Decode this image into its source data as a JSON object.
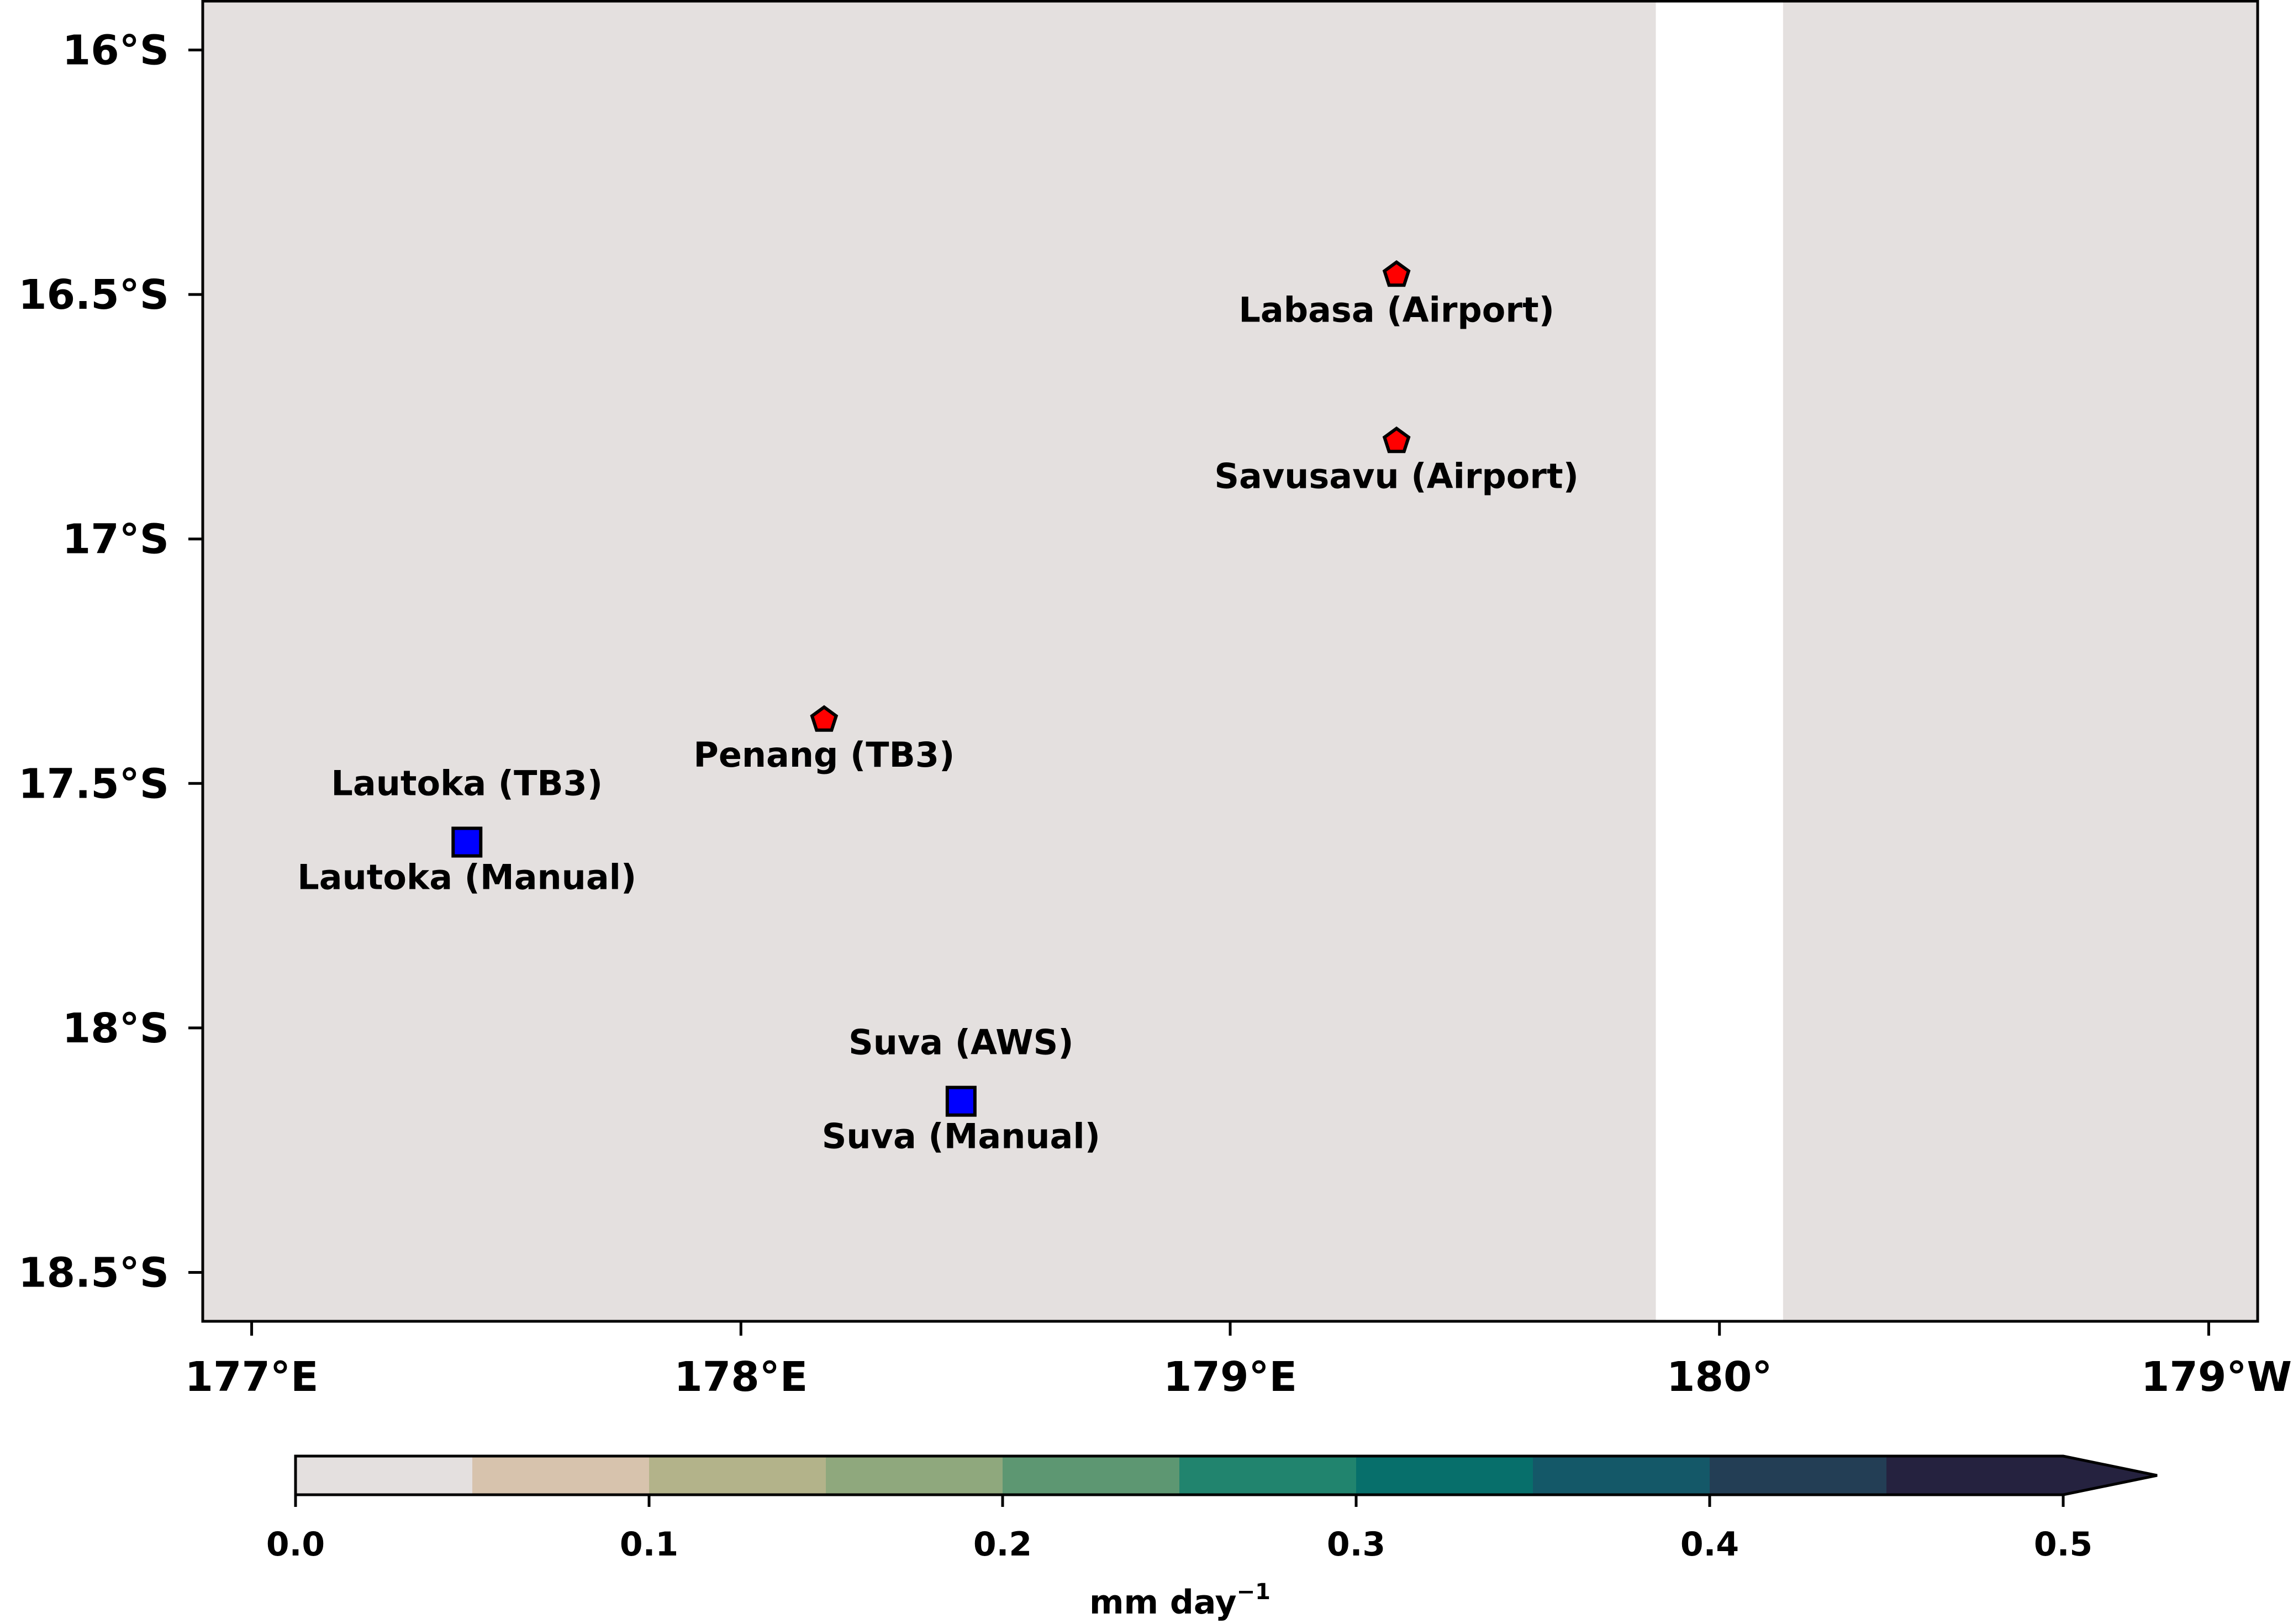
{
  "map": {
    "lon_min": 176.9,
    "lon_max": 181.1,
    "lat_top": -15.9,
    "lat_bottom": -18.6,
    "background_color": "#e4e0df",
    "missing_strip": {
      "lon_from": 179.87,
      "lon_to": 180.13,
      "color": "#ffffff"
    },
    "x_ticks": [
      {
        "value": 177,
        "label": "177°E"
      },
      {
        "value": 178,
        "label": "178°E"
      },
      {
        "value": 179,
        "label": "179°E"
      },
      {
        "value": 180,
        "label": "180°"
      },
      {
        "value": 181,
        "label": "179°W"
      }
    ],
    "y_ticks": [
      {
        "value": -16.0,
        "label": "16°S"
      },
      {
        "value": -16.5,
        "label": "16.5°S"
      },
      {
        "value": -17.0,
        "label": "17°S"
      },
      {
        "value": -17.5,
        "label": "17.5°S"
      },
      {
        "value": -18.0,
        "label": "18°S"
      },
      {
        "value": -18.5,
        "label": "18.5°S"
      }
    ]
  },
  "stations": [
    {
      "marker": "pentagon",
      "color": "#ff0000",
      "lon": 179.34,
      "lat": -16.46,
      "labels": [
        {
          "text": "Labasa (Airport)",
          "position": "below"
        }
      ]
    },
    {
      "marker": "pentagon",
      "color": "#ff0000",
      "lon": 179.34,
      "lat": -16.8,
      "labels": [
        {
          "text": "Savusavu (Airport)",
          "position": "below"
        }
      ]
    },
    {
      "marker": "pentagon",
      "color": "#ff0000",
      "lon": 178.17,
      "lat": -17.37,
      "labels": [
        {
          "text": "Penang (TB3)",
          "position": "below"
        }
      ]
    },
    {
      "marker": "square",
      "color": "#0000ff",
      "lon": 177.44,
      "lat": -17.62,
      "labels": [
        {
          "text": "Lautoka (TB3)",
          "position": "above"
        },
        {
          "text": "Lautoka (Manual)",
          "position": "below"
        }
      ]
    },
    {
      "marker": "square",
      "color": "#0000ff",
      "lon": 178.45,
      "lat": -18.15,
      "labels": [
        {
          "text": "Suva (AWS)",
          "position": "above"
        },
        {
          "text": "Suva (Manual)",
          "position": "below"
        }
      ]
    }
  ],
  "colorbar": {
    "min": 0.0,
    "max": 0.5,
    "extend": "max",
    "extend_color": "#25223f",
    "bins": [
      {
        "from": 0.0,
        "to": 0.05,
        "color": "#e4e0df"
      },
      {
        "from": 0.05,
        "to": 0.1,
        "color": "#d7c3ad"
      },
      {
        "from": 0.1,
        "to": 0.15,
        "color": "#b3b38a"
      },
      {
        "from": 0.15,
        "to": 0.2,
        "color": "#8fa87d"
      },
      {
        "from": 0.2,
        "to": 0.25,
        "color": "#5d9772"
      },
      {
        "from": 0.25,
        "to": 0.3,
        "color": "#21846e"
      },
      {
        "from": 0.3,
        "to": 0.35,
        "color": "#076f6b"
      },
      {
        "from": 0.35,
        "to": 0.4,
        "color": "#145868"
      },
      {
        "from": 0.4,
        "to": 0.45,
        "color": "#233e55"
      },
      {
        "from": 0.45,
        "to": 0.5,
        "color": "#25223f"
      }
    ],
    "ticks": [
      {
        "value": 0.0,
        "label": "0.0"
      },
      {
        "value": 0.1,
        "label": "0.1"
      },
      {
        "value": 0.2,
        "label": "0.2"
      },
      {
        "value": 0.3,
        "label": "0.3"
      },
      {
        "value": 0.4,
        "label": "0.4"
      },
      {
        "value": 0.5,
        "label": "0.5"
      }
    ],
    "label_main": "mm day",
    "label_superscript": "−1"
  }
}
